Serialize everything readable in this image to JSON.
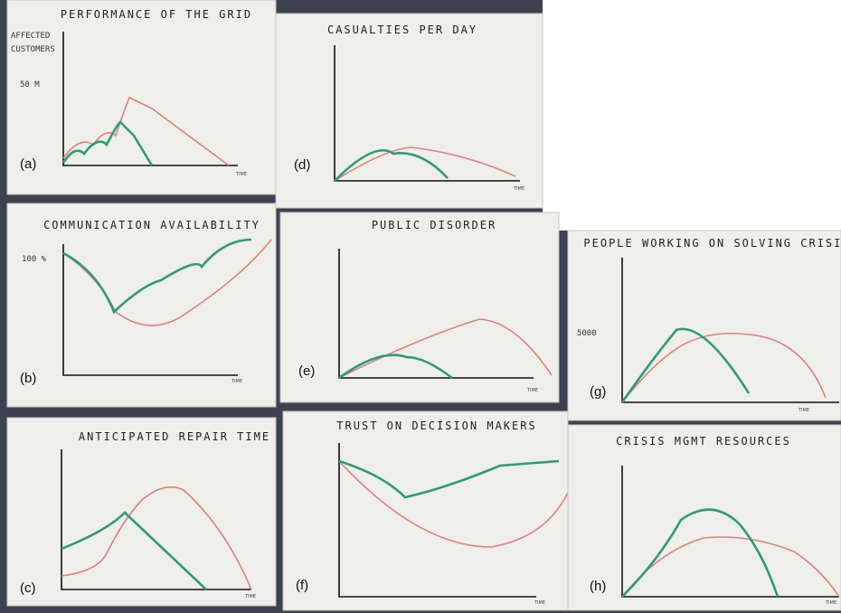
{
  "panels": [
    {
      "label": "(a)",
      "title": "PERFORMANCE OF THE GRID",
      "axis_label": "TIME",
      "notes": [
        "AFFECTED",
        "CUSTOMERS",
        "50 M"
      ]
    },
    {
      "label": "(b)",
      "title": "COMMUNICATION AVAILABILITY",
      "axis_label": "TIME",
      "notes": [
        "100 %"
      ]
    },
    {
      "label": "(c)",
      "title": "ANTICIPATED REPAIR TIME",
      "axis_label": "TIME"
    },
    {
      "label": "(d)",
      "title": "CASUALTIES PER DAY",
      "axis_label": "TIME"
    },
    {
      "label": "(e)",
      "title": "PUBLIC DISORDER",
      "axis_label": "TIME"
    },
    {
      "label": "(f)",
      "title": "TRUST ON DECISION MAKERS",
      "axis_label": "TIME"
    },
    {
      "label": "(g)",
      "title": "PEOPLE WORKING ON SOLVING CRISIS",
      "axis_label": "TIME",
      "notes": [
        "5000"
      ]
    },
    {
      "label": "(h)",
      "title": "CRISIS MGMT RESOURCES",
      "axis_label": "TIME"
    }
  ]
}
